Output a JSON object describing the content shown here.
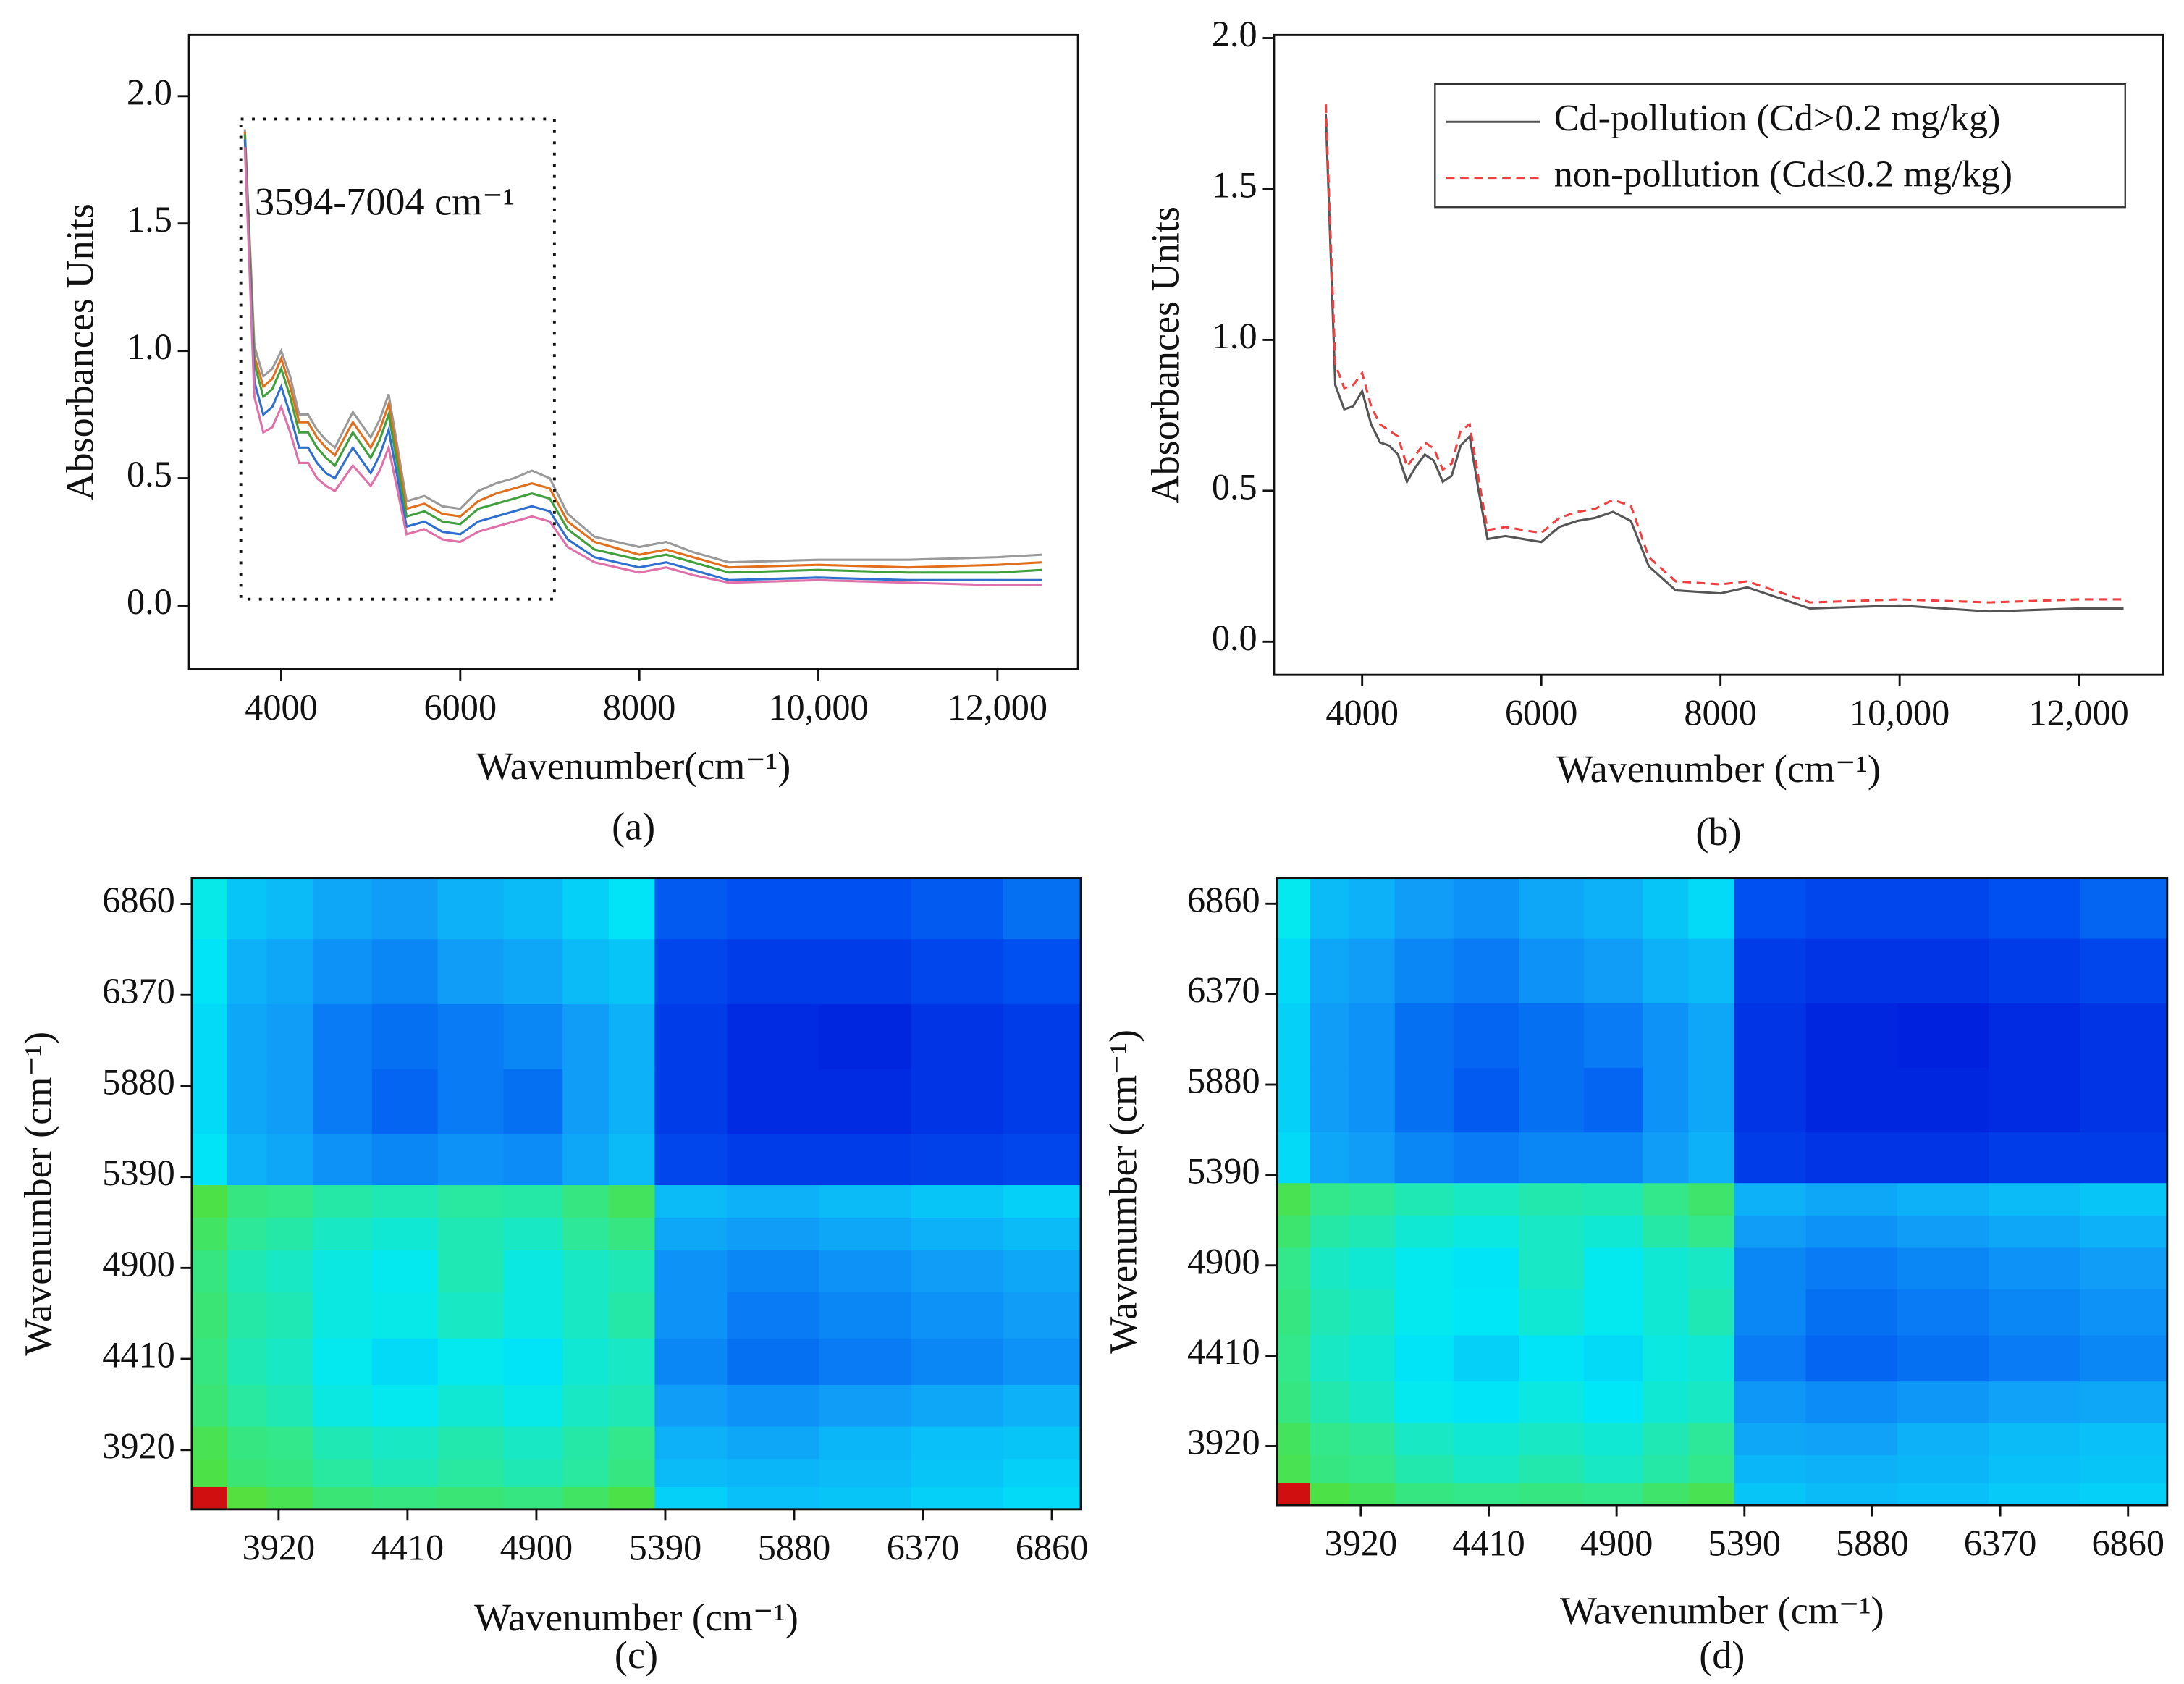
{
  "chart_data": [
    {
      "type": "line",
      "panel_label": "(a)",
      "x_label": "Wavenumber(cm⁻¹)",
      "y_label": "Absorbances Units",
      "annotation": "3594-7004 cm⁻¹",
      "xlim": [
        2970,
        12900
      ],
      "ylim": [
        -0.25,
        2.24
      ],
      "xticks": [
        4000,
        6000,
        8000,
        {
          "value": 10000,
          "label": "10,000"
        },
        {
          "value": 12000,
          "label": "12,000"
        }
      ],
      "yticks": [
        {
          "value": 0,
          "label": "0.0"
        },
        {
          "value": 0.5,
          "label": "0.5"
        },
        {
          "value": 1,
          "label": "1.0"
        },
        {
          "value": 1.5,
          "label": "1.5"
        },
        {
          "value": 2,
          "label": "2.0"
        }
      ],
      "x": [
        3594,
        3700,
        3800,
        3900,
        4000,
        4100,
        4200,
        4300,
        4400,
        4500,
        4600,
        4800,
        5000,
        5100,
        5200,
        5300,
        5400,
        5600,
        5800,
        6000,
        6200,
        6400,
        6600,
        6800,
        7000,
        7200,
        7500,
        8000,
        8300,
        8600,
        9000,
        10000,
        11000,
        12000,
        12500
      ],
      "series": [
        {
          "color": "#9a9a9a",
          "values": [
            1.87,
            1.02,
            0.9,
            0.93,
            1.0,
            0.9,
            0.75,
            0.75,
            0.69,
            0.65,
            0.62,
            0.76,
            0.66,
            0.73,
            0.83,
            0.62,
            0.41,
            0.43,
            0.39,
            0.38,
            0.45,
            0.48,
            0.5,
            0.53,
            0.5,
            0.36,
            0.27,
            0.23,
            0.25,
            0.21,
            0.17,
            0.18,
            0.18,
            0.19,
            0.2
          ]
        },
        {
          "color": "#e0701e",
          "values": [
            1.86,
            0.98,
            0.86,
            0.89,
            0.97,
            0.86,
            0.72,
            0.72,
            0.66,
            0.62,
            0.59,
            0.72,
            0.62,
            0.69,
            0.79,
            0.59,
            0.38,
            0.4,
            0.36,
            0.35,
            0.41,
            0.44,
            0.46,
            0.48,
            0.46,
            0.33,
            0.25,
            0.2,
            0.22,
            0.19,
            0.15,
            0.16,
            0.15,
            0.16,
            0.17
          ]
        },
        {
          "color": "#3fa03c",
          "values": [
            1.85,
            0.95,
            0.82,
            0.85,
            0.93,
            0.82,
            0.68,
            0.68,
            0.62,
            0.58,
            0.55,
            0.68,
            0.58,
            0.65,
            0.75,
            0.55,
            0.35,
            0.37,
            0.33,
            0.32,
            0.38,
            0.4,
            0.42,
            0.44,
            0.42,
            0.3,
            0.22,
            0.18,
            0.2,
            0.17,
            0.13,
            0.14,
            0.13,
            0.13,
            0.14
          ]
        },
        {
          "color": "#2f6fd0",
          "values": [
            1.83,
            0.88,
            0.75,
            0.78,
            0.86,
            0.75,
            0.62,
            0.62,
            0.56,
            0.52,
            0.5,
            0.62,
            0.52,
            0.59,
            0.69,
            0.5,
            0.31,
            0.33,
            0.29,
            0.28,
            0.33,
            0.35,
            0.37,
            0.39,
            0.37,
            0.26,
            0.19,
            0.15,
            0.17,
            0.14,
            0.1,
            0.11,
            0.1,
            0.1,
            0.1
          ]
        },
        {
          "color": "#e070a8",
          "values": [
            1.8,
            0.82,
            0.68,
            0.7,
            0.78,
            0.68,
            0.56,
            0.56,
            0.5,
            0.47,
            0.45,
            0.55,
            0.47,
            0.53,
            0.62,
            0.45,
            0.28,
            0.3,
            0.26,
            0.25,
            0.29,
            0.31,
            0.33,
            0.35,
            0.33,
            0.23,
            0.17,
            0.13,
            0.15,
            0.12,
            0.09,
            0.1,
            0.09,
            0.08,
            0.08
          ]
        }
      ]
    },
    {
      "type": "line",
      "panel_label": "(b)",
      "x_label": "Wavenumber (cm⁻¹)",
      "y_label": "Absorbances Units",
      "legend": "upper right",
      "xlim": [
        3016,
        12940
      ],
      "ylim": [
        -0.11,
        2.01
      ],
      "xticks": [
        4000,
        6000,
        8000,
        {
          "value": 10000,
          "label": "10,000"
        },
        {
          "value": 12000,
          "label": "12,000"
        }
      ],
      "yticks": [
        {
          "value": 0,
          "label": "0.0"
        },
        {
          "value": 0.5,
          "label": "0.5"
        },
        {
          "value": 1,
          "label": "1.0"
        },
        {
          "value": 1.5,
          "label": "1.5"
        },
        {
          "value": 2,
          "label": "2.0"
        }
      ],
      "x": [
        3594,
        3700,
        3800,
        3900,
        4000,
        4100,
        4200,
        4300,
        4400,
        4500,
        4600,
        4700,
        4800,
        4900,
        5000,
        5100,
        5200,
        5300,
        5400,
        5600,
        5800,
        6000,
        6200,
        6400,
        6600,
        6800,
        7000,
        7200,
        7500,
        8000,
        8300,
        8600,
        9000,
        10000,
        11000,
        12000,
        12500
      ],
      "series": [
        {
          "name": "Cd-pollution (Cd>0.2 mg/kg)",
          "color": "#555555",
          "dash": false,
          "values": [
            1.75,
            0.85,
            0.77,
            0.78,
            0.83,
            0.72,
            0.66,
            0.65,
            0.62,
            0.53,
            0.58,
            0.62,
            0.6,
            0.53,
            0.55,
            0.65,
            0.68,
            0.5,
            0.34,
            0.35,
            0.34,
            0.33,
            0.38,
            0.4,
            0.41,
            0.43,
            0.4,
            0.25,
            0.17,
            0.16,
            0.18,
            0.15,
            0.11,
            0.12,
            0.1,
            0.11,
            0.11
          ]
        },
        {
          "name": "non-pollution (Cd≤0.2 mg/kg)",
          "color": "#f04040",
          "dash": true,
          "values": [
            1.78,
            0.92,
            0.84,
            0.85,
            0.89,
            0.78,
            0.72,
            0.7,
            0.68,
            0.58,
            0.62,
            0.66,
            0.64,
            0.57,
            0.59,
            0.7,
            0.72,
            0.54,
            0.37,
            0.38,
            0.37,
            0.36,
            0.41,
            0.43,
            0.44,
            0.47,
            0.45,
            0.28,
            0.2,
            0.19,
            0.2,
            0.17,
            0.13,
            0.14,
            0.13,
            0.14,
            0.14
          ]
        }
      ]
    },
    {
      "type": "heatmap",
      "panel_label": "(c)",
      "x_label": "Wavenumber (cm⁻¹)",
      "y_label": "Wavenumber (cm⁻¹)",
      "xlim": [
        3590,
        6970
      ],
      "ylim": [
        3600,
        7000
      ],
      "xticks": [
        3920,
        4410,
        4900,
        5390,
        5880,
        6370,
        6860
      ],
      "yticks": [
        3920,
        4410,
        4900,
        5390,
        5880,
        6370,
        6860
      ],
      "colormap": [
        "#0010d8",
        "#0050f0",
        "#10a0f8",
        "#00e8f8",
        "#30e890",
        "#50e040",
        "#e0e020",
        "#d01010"
      ],
      "x": [
        3650,
        3800,
        3950,
        4150,
        4400,
        4650,
        4900,
        5100,
        5250,
        5450,
        5800,
        6150,
        6500,
        6850
      ],
      "y": [
        3650,
        3800,
        3950,
        4150,
        4400,
        4650,
        4900,
        5100,
        5250,
        5450,
        5800,
        6150,
        6500,
        6850
      ],
      "z": [
        [
          1.0,
          0.72,
          0.68,
          0.62,
          0.6,
          0.62,
          0.6,
          0.65,
          0.7,
          0.38,
          0.35,
          0.36,
          0.38,
          0.4
        ],
        [
          0.7,
          0.62,
          0.6,
          0.55,
          0.52,
          0.55,
          0.52,
          0.55,
          0.6,
          0.34,
          0.33,
          0.34,
          0.36,
          0.38
        ],
        [
          0.68,
          0.6,
          0.58,
          0.52,
          0.5,
          0.53,
          0.5,
          0.54,
          0.58,
          0.32,
          0.3,
          0.33,
          0.35,
          0.36
        ],
        [
          0.62,
          0.55,
          0.52,
          0.46,
          0.44,
          0.48,
          0.45,
          0.5,
          0.52,
          0.28,
          0.26,
          0.28,
          0.3,
          0.32
        ],
        [
          0.6,
          0.52,
          0.5,
          0.44,
          0.4,
          0.44,
          0.42,
          0.48,
          0.5,
          0.24,
          0.2,
          0.22,
          0.24,
          0.26
        ],
        [
          0.62,
          0.54,
          0.52,
          0.46,
          0.45,
          0.5,
          0.46,
          0.5,
          0.54,
          0.26,
          0.22,
          0.24,
          0.26,
          0.28
        ],
        [
          0.6,
          0.52,
          0.5,
          0.46,
          0.44,
          0.52,
          0.46,
          0.5,
          0.52,
          0.26,
          0.24,
          0.26,
          0.28,
          0.3
        ],
        [
          0.65,
          0.56,
          0.54,
          0.5,
          0.48,
          0.52,
          0.5,
          0.56,
          0.6,
          0.3,
          0.28,
          0.3,
          0.32,
          0.34
        ],
        [
          0.7,
          0.6,
          0.58,
          0.54,
          0.52,
          0.55,
          0.54,
          0.6,
          0.66,
          0.34,
          0.32,
          0.34,
          0.36,
          0.38
        ],
        [
          0.42,
          0.32,
          0.3,
          0.26,
          0.24,
          0.26,
          0.25,
          0.3,
          0.34,
          0.12,
          0.1,
          0.1,
          0.11,
          0.12
        ],
        [
          0.4,
          0.3,
          0.28,
          0.22,
          0.18,
          0.22,
          0.2,
          0.28,
          0.32,
          0.1,
          0.06,
          0.06,
          0.08,
          0.1
        ],
        [
          0.4,
          0.3,
          0.28,
          0.22,
          0.2,
          0.22,
          0.24,
          0.28,
          0.32,
          0.1,
          0.06,
          0.05,
          0.08,
          0.1
        ],
        [
          0.42,
          0.32,
          0.3,
          0.26,
          0.24,
          0.28,
          0.3,
          0.34,
          0.36,
          0.12,
          0.1,
          0.1,
          0.12,
          0.14
        ],
        [
          0.45,
          0.36,
          0.34,
          0.3,
          0.28,
          0.32,
          0.34,
          0.38,
          0.42,
          0.16,
          0.14,
          0.14,
          0.16,
          0.2
        ]
      ]
    },
    {
      "type": "heatmap",
      "panel_label": "(d)",
      "x_label": "Wavenumber (cm⁻¹)",
      "y_label": "Wavenumber (cm⁻¹)",
      "xlim": [
        3598,
        7010
      ],
      "ylim": [
        3600,
        7000
      ],
      "xticks": [
        3920,
        4410,
        4900,
        5390,
        5880,
        6370,
        6860
      ],
      "yticks": [
        3920,
        4410,
        4900,
        5390,
        5880,
        6370,
        6860
      ],
      "colormap": [
        "#0010d8",
        "#0050f0",
        "#10a0f8",
        "#00e8f8",
        "#30e890",
        "#50e040",
        "#e0e020",
        "#d01010"
      ],
      "x": [
        3650,
        3800,
        3950,
        4150,
        4400,
        4650,
        4900,
        5100,
        5250,
        5450,
        5800,
        6150,
        6500,
        6850
      ],
      "y": [
        3650,
        3800,
        3950,
        4150,
        4400,
        4650,
        4900,
        5100,
        5250,
        5450,
        5800,
        6150,
        6500,
        6850
      ],
      "z": [
        [
          1.0,
          0.7,
          0.66,
          0.6,
          0.58,
          0.6,
          0.58,
          0.64,
          0.68,
          0.36,
          0.34,
          0.35,
          0.37,
          0.38
        ],
        [
          0.68,
          0.6,
          0.58,
          0.53,
          0.5,
          0.53,
          0.5,
          0.54,
          0.58,
          0.33,
          0.32,
          0.33,
          0.35,
          0.36
        ],
        [
          0.66,
          0.58,
          0.56,
          0.5,
          0.48,
          0.5,
          0.48,
          0.52,
          0.56,
          0.3,
          0.29,
          0.32,
          0.34,
          0.35
        ],
        [
          0.6,
          0.53,
          0.5,
          0.44,
          0.42,
          0.46,
          0.43,
          0.48,
          0.5,
          0.27,
          0.25,
          0.27,
          0.29,
          0.3
        ],
        [
          0.58,
          0.5,
          0.48,
          0.42,
          0.38,
          0.42,
          0.4,
          0.46,
          0.48,
          0.22,
          0.18,
          0.2,
          0.22,
          0.24
        ],
        [
          0.6,
          0.52,
          0.5,
          0.44,
          0.43,
          0.48,
          0.44,
          0.48,
          0.52,
          0.24,
          0.2,
          0.22,
          0.24,
          0.26
        ],
        [
          0.58,
          0.5,
          0.48,
          0.44,
          0.42,
          0.5,
          0.44,
          0.48,
          0.5,
          0.24,
          0.22,
          0.24,
          0.26,
          0.28
        ],
        [
          0.63,
          0.54,
          0.52,
          0.48,
          0.46,
          0.5,
          0.48,
          0.54,
          0.58,
          0.28,
          0.26,
          0.28,
          0.3,
          0.32
        ],
        [
          0.68,
          0.58,
          0.56,
          0.52,
          0.5,
          0.53,
          0.52,
          0.58,
          0.64,
          0.32,
          0.3,
          0.32,
          0.34,
          0.36
        ],
        [
          0.4,
          0.3,
          0.28,
          0.24,
          0.22,
          0.24,
          0.24,
          0.28,
          0.32,
          0.1,
          0.08,
          0.08,
          0.1,
          0.1
        ],
        [
          0.38,
          0.28,
          0.26,
          0.2,
          0.16,
          0.2,
          0.18,
          0.26,
          0.3,
          0.08,
          0.05,
          0.05,
          0.06,
          0.08
        ],
        [
          0.38,
          0.28,
          0.26,
          0.2,
          0.18,
          0.2,
          0.22,
          0.26,
          0.3,
          0.08,
          0.05,
          0.04,
          0.06,
          0.08
        ],
        [
          0.4,
          0.3,
          0.28,
          0.24,
          0.22,
          0.26,
          0.28,
          0.32,
          0.34,
          0.1,
          0.08,
          0.08,
          0.1,
          0.12
        ],
        [
          0.44,
          0.34,
          0.32,
          0.28,
          0.26,
          0.3,
          0.32,
          0.36,
          0.4,
          0.14,
          0.12,
          0.12,
          0.14,
          0.18
        ]
      ]
    }
  ]
}
